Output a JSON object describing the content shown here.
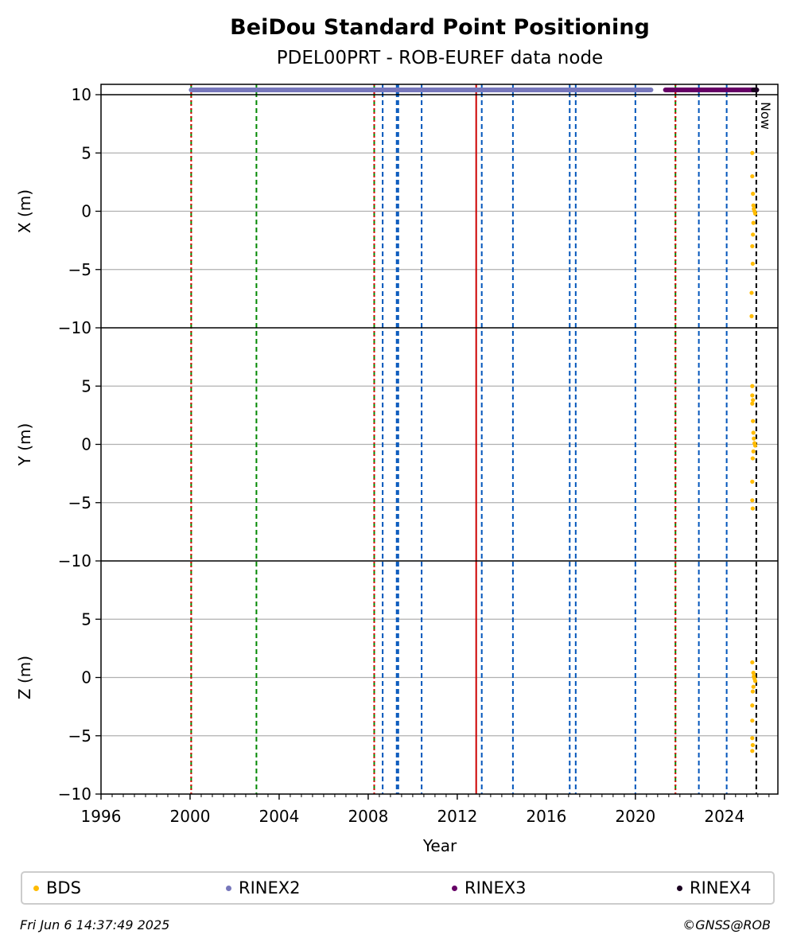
{
  "chart_data": {
    "type": "scatter",
    "title": "BeiDou Standard Point Positioning",
    "subtitle": "PDEL00PRT - ROB-EUREF data node",
    "xlabel": "Year",
    "xlim": [
      1996,
      2026.4
    ],
    "x_ticks": [
      "1996",
      "2000",
      "2004",
      "2008",
      "2012",
      "2016",
      "2020",
      "2024"
    ],
    "grid": "horizontal",
    "panels": [
      {
        "ylabel": "X (m)",
        "ylim": [
          -10,
          10
        ],
        "y_ticks": [
          "10",
          "5",
          "0",
          "−5",
          "−10"
        ],
        "bds_points": [
          {
            "x": 2025.25,
            "y": 5.0
          },
          {
            "x": 2025.25,
            "y": 3.0
          },
          {
            "x": 2025.28,
            "y": 1.5
          },
          {
            "x": 2025.3,
            "y": 0.5
          },
          {
            "x": 2025.32,
            "y": 0.2
          },
          {
            "x": 2025.35,
            "y": 0.0
          },
          {
            "x": 2025.38,
            "y": -0.2
          },
          {
            "x": 2025.3,
            "y": -1.0
          },
          {
            "x": 2025.28,
            "y": -2.0
          },
          {
            "x": 2025.25,
            "y": -3.0
          },
          {
            "x": 2025.27,
            "y": -4.5
          },
          {
            "x": 2025.22,
            "y": -7.0
          },
          {
            "x": 2025.22,
            "y": -9.0
          }
        ]
      },
      {
        "ylabel": "Y (m)",
        "ylim": [
          -10,
          10
        ],
        "y_ticks": [
          "5",
          "0",
          "−5",
          "−10"
        ],
        "bds_points": [
          {
            "x": 2025.25,
            "y": 5.0
          },
          {
            "x": 2025.25,
            "y": 4.2
          },
          {
            "x": 2025.28,
            "y": 3.8
          },
          {
            "x": 2025.25,
            "y": 3.5
          },
          {
            "x": 2025.28,
            "y": 2.0
          },
          {
            "x": 2025.3,
            "y": 1.0
          },
          {
            "x": 2025.32,
            "y": 0.5
          },
          {
            "x": 2025.35,
            "y": 0.1
          },
          {
            "x": 2025.38,
            "y": -0.1
          },
          {
            "x": 2025.3,
            "y": -0.6
          },
          {
            "x": 2025.27,
            "y": -1.2
          },
          {
            "x": 2025.25,
            "y": -3.2
          },
          {
            "x": 2025.25,
            "y": -4.8
          },
          {
            "x": 2025.27,
            "y": -5.5
          }
        ]
      },
      {
        "ylabel": "Z (m)",
        "ylim": [
          -10,
          10
        ],
        "y_ticks": [
          "5",
          "0",
          "−5",
          "−10"
        ],
        "bds_points": [
          {
            "x": 2025.25,
            "y": 1.3
          },
          {
            "x": 2025.3,
            "y": 0.4
          },
          {
            "x": 2025.32,
            "y": 0.1
          },
          {
            "x": 2025.35,
            "y": -0.1
          },
          {
            "x": 2025.38,
            "y": -0.3
          },
          {
            "x": 2025.3,
            "y": -0.8
          },
          {
            "x": 2025.27,
            "y": -1.2
          },
          {
            "x": 2025.25,
            "y": -2.4
          },
          {
            "x": 2025.25,
            "y": -3.7
          },
          {
            "x": 2025.25,
            "y": -5.2
          },
          {
            "x": 2025.27,
            "y": -5.8
          },
          {
            "x": 2025.25,
            "y": -6.3
          }
        ]
      }
    ],
    "data_availability": [
      {
        "name": "RINEX2",
        "color": "#7777bb",
        "start": 2000.05,
        "end": 2020.7
      },
      {
        "name": "RINEX3",
        "color": "#660066",
        "start": 2021.35,
        "end": 2025.45
      },
      {
        "name": "RINEX4",
        "color": "#1a0020",
        "start": 2025.3,
        "end": 2025.45
      }
    ],
    "event_lines": [
      {
        "x": 2000.05,
        "color": "#008800",
        "style": "dashed"
      },
      {
        "x": 2000.05,
        "color": "#dd0000",
        "style": "dotted"
      },
      {
        "x": 2002.98,
        "color": "#008800",
        "style": "dashed"
      },
      {
        "x": 2008.27,
        "color": "#008800",
        "style": "dashed"
      },
      {
        "x": 2008.27,
        "color": "#dd0000",
        "style": "dotted"
      },
      {
        "x": 2008.65,
        "color": "#0055bb",
        "style": "dashed"
      },
      {
        "x": 2009.28,
        "color": "#0055bb",
        "style": "dashed"
      },
      {
        "x": 2009.35,
        "color": "#0055bb",
        "style": "dashed"
      },
      {
        "x": 2010.4,
        "color": "#0055bb",
        "style": "dashed"
      },
      {
        "x": 2012.85,
        "color": "#cc0000",
        "style": "solid"
      },
      {
        "x": 2013.1,
        "color": "#0055bb",
        "style": "dashed"
      },
      {
        "x": 2014.5,
        "color": "#0055bb",
        "style": "dashed"
      },
      {
        "x": 2017.05,
        "color": "#0055bb",
        "style": "dashed"
      },
      {
        "x": 2017.32,
        "color": "#0055bb",
        "style": "dashed"
      },
      {
        "x": 2020.0,
        "color": "#0055bb",
        "style": "dashed"
      },
      {
        "x": 2021.8,
        "color": "#008800",
        "style": "dashed"
      },
      {
        "x": 2021.8,
        "color": "#dd0000",
        "style": "dotted"
      },
      {
        "x": 2022.85,
        "color": "#0055bb",
        "style": "dashed"
      },
      {
        "x": 2024.1,
        "color": "#0055bb",
        "style": "dashed"
      }
    ],
    "now": {
      "x": 2025.43,
      "label": "Now",
      "color": "#000000"
    },
    "legend": [
      {
        "name": "BDS",
        "color": "#ffbb00"
      },
      {
        "name": "RINEX2",
        "color": "#7777bb"
      },
      {
        "name": "RINEX3",
        "color": "#660066"
      },
      {
        "name": "RINEX4",
        "color": "#1a0020"
      }
    ],
    "legend_position": "bottom"
  },
  "footer": {
    "timestamp": "Fri Jun  6 14:37:49 2025",
    "copyright": "©GNSS@ROB"
  }
}
